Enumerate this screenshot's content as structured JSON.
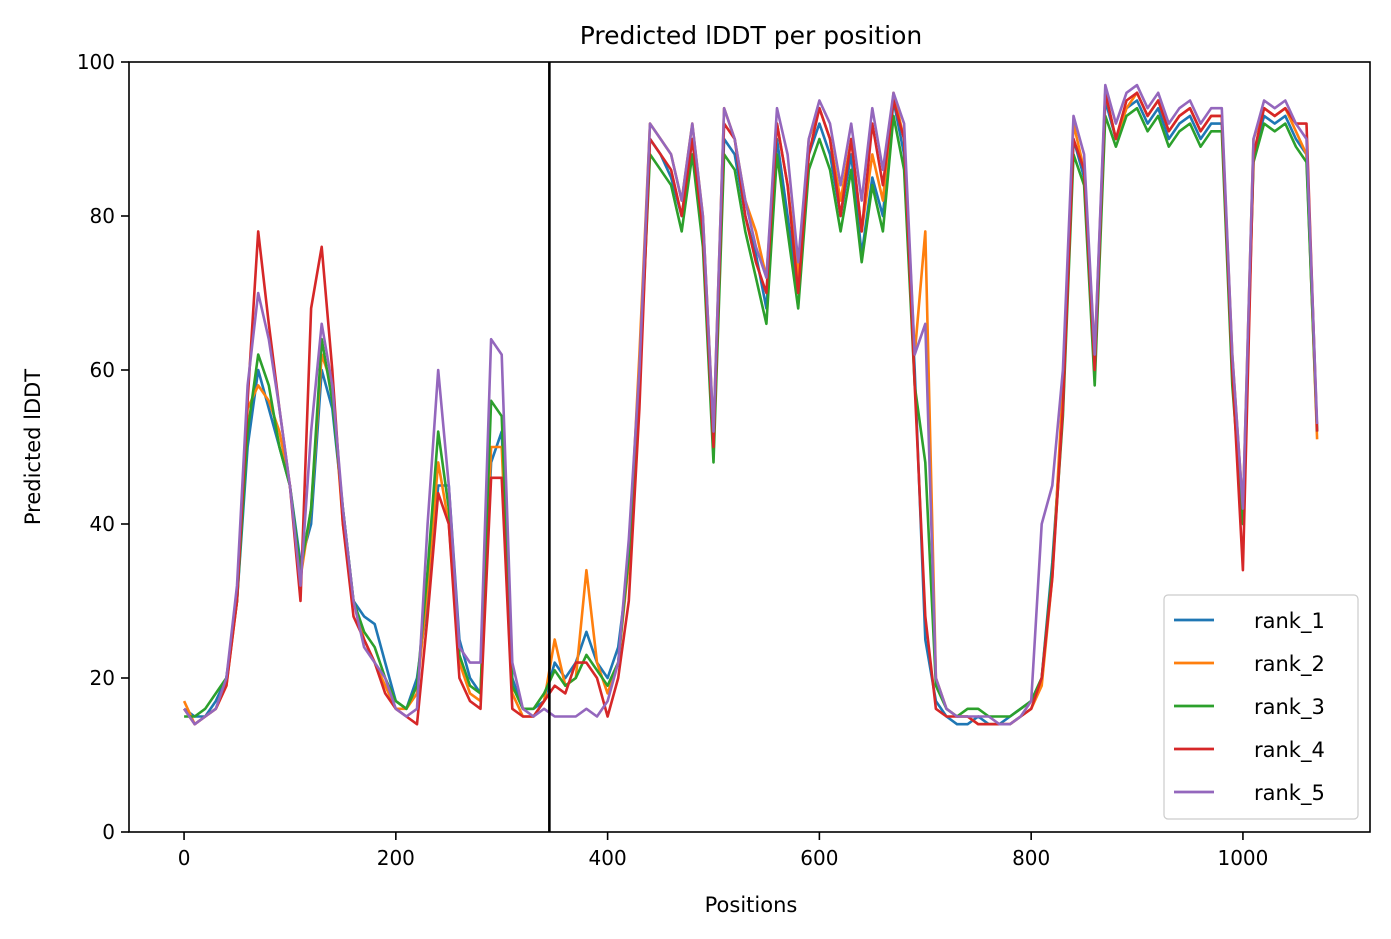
{
  "chart_data": {
    "type": "line",
    "title": "Predicted lDDT per position",
    "xlabel": "Positions",
    "ylabel": "Predicted lDDT",
    "xlim": [
      -52,
      1120
    ],
    "ylim": [
      0,
      100
    ],
    "xticks": [
      0,
      200,
      400,
      600,
      800,
      1000
    ],
    "yticks": [
      0,
      20,
      40,
      60,
      80,
      100
    ],
    "vline": 345,
    "grid": false,
    "legend_position": "bottom-right",
    "series": [
      {
        "name": "rank_1",
        "color": "#1f77b4",
        "x": [
          0,
          10,
          20,
          30,
          40,
          50,
          60,
          70,
          80,
          90,
          100,
          110,
          120,
          130,
          140,
          150,
          160,
          170,
          180,
          190,
          200,
          210,
          220,
          230,
          240,
          250,
          260,
          270,
          280,
          290,
          300,
          310,
          320,
          330,
          340,
          350,
          360,
          370,
          380,
          390,
          400,
          410,
          420,
          430,
          440,
          450,
          460,
          470,
          480,
          490,
          500,
          510,
          520,
          530,
          540,
          550,
          560,
          570,
          580,
          590,
          600,
          610,
          620,
          630,
          640,
          650,
          660,
          670,
          680,
          690,
          700,
          710,
          720,
          730,
          740,
          750,
          760,
          770,
          780,
          790,
          800,
          810,
          820,
          830,
          840,
          850,
          860,
          870,
          880,
          890,
          900,
          910,
          920,
          930,
          940,
          950,
          960,
          970,
          980,
          990,
          1000,
          1010,
          1020,
          1030,
          1040,
          1050,
          1060,
          1070
        ],
        "values": [
          16,
          15,
          15,
          17,
          20,
          30,
          50,
          60,
          55,
          50,
          45,
          35,
          40,
          60,
          55,
          42,
          30,
          28,
          27,
          22,
          17,
          16,
          20,
          30,
          45,
          45,
          25,
          20,
          18,
          48,
          52,
          20,
          16,
          16,
          17,
          22,
          20,
          22,
          26,
          22,
          20,
          24,
          35,
          60,
          90,
          88,
          85,
          80,
          90,
          78,
          50,
          90,
          88,
          80,
          75,
          68,
          90,
          80,
          70,
          88,
          92,
          88,
          80,
          88,
          75,
          85,
          80,
          95,
          88,
          60,
          25,
          17,
          15,
          14,
          14,
          15,
          14,
          14,
          15,
          16,
          17,
          20,
          35,
          55,
          90,
          85,
          60,
          95,
          90,
          94,
          95,
          92,
          94,
          90,
          92,
          93,
          90,
          92,
          92,
          60,
          40,
          88,
          93,
          92,
          93,
          90,
          88,
          52
        ]
      },
      {
        "name": "rank_2",
        "color": "#ff7f0e",
        "x": [
          0,
          10,
          20,
          30,
          40,
          50,
          60,
          70,
          80,
          90,
          100,
          110,
          120,
          130,
          140,
          150,
          160,
          170,
          180,
          190,
          200,
          210,
          220,
          230,
          240,
          250,
          260,
          270,
          280,
          290,
          300,
          310,
          320,
          330,
          340,
          350,
          360,
          370,
          380,
          390,
          400,
          410,
          420,
          430,
          440,
          450,
          460,
          470,
          480,
          490,
          500,
          510,
          520,
          530,
          540,
          550,
          560,
          570,
          580,
          590,
          600,
          610,
          620,
          630,
          640,
          650,
          660,
          670,
          680,
          690,
          700,
          710,
          720,
          730,
          740,
          750,
          760,
          770,
          780,
          790,
          800,
          810,
          820,
          830,
          840,
          850,
          860,
          870,
          880,
          890,
          900,
          910,
          920,
          930,
          940,
          950,
          960,
          970,
          980,
          990,
          1000,
          1010,
          1020,
          1030,
          1040,
          1050,
          1060,
          1070
        ],
        "values": [
          17,
          14,
          15,
          16,
          19,
          30,
          55,
          58,
          56,
          52,
          45,
          33,
          42,
          62,
          58,
          40,
          30,
          25,
          22,
          19,
          16,
          16,
          18,
          32,
          48,
          40,
          22,
          18,
          17,
          50,
          50,
          18,
          15,
          15,
          17,
          25,
          19,
          20,
          34,
          22,
          18,
          22,
          35,
          62,
          92,
          90,
          88,
          82,
          92,
          80,
          52,
          94,
          90,
          82,
          78,
          72,
          92,
          84,
          72,
          90,
          94,
          90,
          82,
          90,
          78,
          88,
          82,
          96,
          90,
          62,
          78,
          20,
          16,
          15,
          15,
          14,
          14,
          14,
          14,
          15,
          16,
          19,
          33,
          58,
          92,
          86,
          62,
          96,
          90,
          94,
          96,
          93,
          95,
          91,
          93,
          94,
          91,
          93,
          93,
          62,
          42,
          90,
          94,
          93,
          94,
          91,
          88,
          51
        ]
      },
      {
        "name": "rank_3",
        "color": "#2ca02c",
        "x": [
          0,
          10,
          20,
          30,
          40,
          50,
          60,
          70,
          80,
          90,
          100,
          110,
          120,
          130,
          140,
          150,
          160,
          170,
          180,
          190,
          200,
          210,
          220,
          230,
          240,
          250,
          260,
          270,
          280,
          290,
          300,
          310,
          320,
          330,
          340,
          350,
          360,
          370,
          380,
          390,
          400,
          410,
          420,
          430,
          440,
          450,
          460,
          470,
          480,
          490,
          500,
          510,
          520,
          530,
          540,
          550,
          560,
          570,
          580,
          590,
          600,
          610,
          620,
          630,
          640,
          650,
          660,
          670,
          680,
          690,
          700,
          710,
          720,
          730,
          740,
          750,
          760,
          770,
          780,
          790,
          800,
          810,
          820,
          830,
          840,
          850,
          860,
          870,
          880,
          890,
          900,
          910,
          920,
          930,
          940,
          950,
          960,
          970,
          980,
          990,
          1000,
          1010,
          1020,
          1030,
          1040,
          1050,
          1060,
          1070
        ],
        "values": [
          15,
          15,
          16,
          18,
          20,
          30,
          52,
          62,
          58,
          50,
          45,
          34,
          42,
          64,
          56,
          42,
          30,
          26,
          24,
          20,
          17,
          16,
          19,
          34,
          52,
          42,
          23,
          19,
          18,
          56,
          54,
          19,
          16,
          16,
          18,
          21,
          19,
          20,
          23,
          21,
          19,
          22,
          36,
          58,
          88,
          86,
          84,
          78,
          88,
          76,
          48,
          88,
          86,
          78,
          72,
          66,
          88,
          78,
          68,
          86,
          90,
          86,
          78,
          86,
          74,
          84,
          78,
          93,
          86,
          58,
          48,
          19,
          16,
          15,
          16,
          16,
          15,
          15,
          15,
          16,
          17,
          20,
          34,
          54,
          88,
          84,
          58,
          93,
          89,
          93,
          94,
          91,
          93,
          89,
          91,
          92,
          89,
          91,
          91,
          58,
          40,
          87,
          92,
          91,
          92,
          89,
          87,
          52
        ]
      },
      {
        "name": "rank_4",
        "color": "#d62728",
        "x": [
          0,
          10,
          20,
          30,
          40,
          50,
          60,
          70,
          80,
          90,
          100,
          110,
          120,
          130,
          140,
          150,
          160,
          170,
          180,
          190,
          200,
          210,
          220,
          230,
          240,
          250,
          260,
          270,
          280,
          290,
          300,
          310,
          320,
          330,
          340,
          350,
          360,
          370,
          380,
          390,
          400,
          410,
          420,
          430,
          440,
          450,
          460,
          470,
          480,
          490,
          500,
          510,
          520,
          530,
          540,
          550,
          560,
          570,
          580,
          590,
          600,
          610,
          620,
          630,
          640,
          650,
          660,
          670,
          680,
          690,
          700,
          710,
          720,
          730,
          740,
          750,
          760,
          770,
          780,
          790,
          800,
          810,
          820,
          830,
          840,
          850,
          860,
          870,
          880,
          890,
          900,
          910,
          920,
          930,
          940,
          950,
          960,
          970,
          980,
          990,
          1000,
          1010,
          1020,
          1030,
          1040,
          1050,
          1060,
          1070
        ],
        "values": [
          16,
          14,
          15,
          16,
          19,
          30,
          56,
          78,
          66,
          55,
          45,
          30,
          68,
          76,
          60,
          40,
          28,
          25,
          22,
          18,
          16,
          15,
          14,
          28,
          44,
          40,
          20,
          17,
          16,
          46,
          46,
          16,
          15,
          15,
          17,
          19,
          18,
          22,
          22,
          20,
          15,
          20,
          30,
          55,
          90,
          88,
          86,
          80,
          90,
          78,
          50,
          92,
          90,
          80,
          74,
          70,
          92,
          84,
          70,
          88,
          94,
          90,
          80,
          90,
          78,
          92,
          84,
          95,
          90,
          58,
          28,
          16,
          15,
          15,
          15,
          14,
          14,
          14,
          14,
          15,
          16,
          20,
          33,
          55,
          90,
          86,
          60,
          96,
          90,
          95,
          96,
          93,
          95,
          91,
          93,
          94,
          91,
          93,
          93,
          60,
          34,
          88,
          94,
          93,
          94,
          92,
          92,
          52
        ]
      },
      {
        "name": "rank_5",
        "color": "#9467bd",
        "x": [
          0,
          10,
          20,
          30,
          40,
          50,
          60,
          70,
          80,
          90,
          100,
          110,
          120,
          130,
          140,
          150,
          160,
          170,
          180,
          190,
          200,
          210,
          220,
          230,
          240,
          250,
          260,
          270,
          280,
          290,
          300,
          310,
          320,
          330,
          340,
          350,
          360,
          370,
          380,
          390,
          400,
          410,
          420,
          430,
          440,
          450,
          460,
          470,
          480,
          490,
          500,
          510,
          520,
          530,
          540,
          550,
          560,
          570,
          580,
          590,
          600,
          610,
          620,
          630,
          640,
          650,
          660,
          670,
          680,
          690,
          700,
          710,
          720,
          730,
          740,
          750,
          760,
          770,
          780,
          790,
          800,
          810,
          820,
          830,
          840,
          850,
          860,
          870,
          880,
          890,
          900,
          910,
          920,
          930,
          940,
          950,
          960,
          970,
          980,
          990,
          1000,
          1010,
          1020,
          1030,
          1040,
          1050,
          1060,
          1070
        ],
        "values": [
          16,
          14,
          15,
          16,
          20,
          32,
          58,
          70,
          64,
          55,
          45,
          32,
          52,
          66,
          58,
          42,
          30,
          24,
          22,
          20,
          16,
          15,
          16,
          40,
          60,
          45,
          24,
          22,
          22,
          64,
          62,
          22,
          16,
          15,
          16,
          15,
          15,
          15,
          16,
          15,
          17,
          22,
          38,
          60,
          92,
          90,
          88,
          82,
          92,
          80,
          52,
          94,
          90,
          82,
          76,
          72,
          94,
          88,
          74,
          90,
          95,
          92,
          84,
          92,
          82,
          94,
          86,
          96,
          92,
          62,
          66,
          20,
          16,
          15,
          15,
          15,
          15,
          14,
          14,
          15,
          17,
          40,
          45,
          60,
          93,
          88,
          62,
          97,
          92,
          96,
          97,
          94,
          96,
          92,
          94,
          95,
          92,
          94,
          94,
          62,
          42,
          90,
          95,
          94,
          95,
          92,
          90,
          53
        ]
      }
    ]
  }
}
